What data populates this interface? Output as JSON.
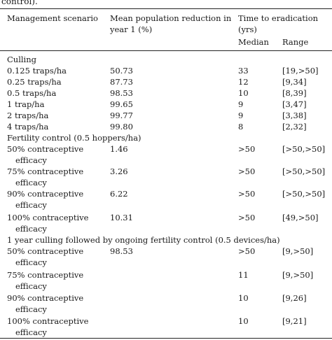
{
  "caption_tail": "control).",
  "headers": {
    "scenario": "Management scenario",
    "reduction_line1": "Mean population reduction in",
    "reduction_line2": "year 1 (%)",
    "eradication_line1": "Time to eradication",
    "eradication_line2": "(yrs)",
    "median": "Median",
    "range": "Range"
  },
  "sections": [
    {
      "title": "Culling",
      "rows": [
        {
          "scenario": "0.125 traps/ha",
          "reduction": "50.73",
          "median": "33",
          "range": "[19,>50]"
        },
        {
          "scenario": "0.25 traps/ha",
          "reduction": "87.73",
          "median": "12",
          "range": "[9,34]"
        },
        {
          "scenario": "0.5 traps/ha",
          "reduction": "98.53",
          "median": "10",
          "range": "[8,39]"
        },
        {
          "scenario": "1 trap/ha",
          "reduction": "99.65",
          "median": "9",
          "range": "[3,47]"
        },
        {
          "scenario": "2 traps/ha",
          "reduction": "99.77",
          "median": "9",
          "range": "[3,38]"
        },
        {
          "scenario": "4 traps/ha",
          "reduction": "99.80",
          "median": "8",
          "range": "[2,32]"
        }
      ]
    },
    {
      "title": "Fertility control (0.5 hoppers/ha)",
      "rows": [
        {
          "scenario": "50% contraceptive",
          "scenario_cont": "efficacy",
          "reduction": "1.46",
          "median": ">50",
          "range": "[>50,>50]"
        },
        {
          "scenario": "75% contraceptive",
          "scenario_cont": "efficacy",
          "reduction": "3.26",
          "median": ">50",
          "range": "[>50,>50]"
        },
        {
          "scenario": "90% contraceptive",
          "scenario_cont": "efficacy",
          "reduction": "6.22",
          "median": ">50",
          "range": "[>50,>50]"
        },
        {
          "scenario": "100% contraceptive",
          "scenario_cont": "efficacy",
          "reduction": "10.31",
          "median": ">50",
          "range": "[49,>50]"
        }
      ]
    },
    {
      "title": "1 year culling followed by ongoing fertility control (0.5 devices/ha)",
      "rows": [
        {
          "scenario": "50% contraceptive",
          "scenario_cont": "efficacy",
          "reduction": "98.53",
          "median": ">50",
          "range": "[9,>50]"
        },
        {
          "scenario": "75% contraceptive",
          "scenario_cont": "efficacy",
          "reduction": "",
          "median": "11",
          "range": "[9,>50]"
        },
        {
          "scenario": "90% contraceptive",
          "scenario_cont": "efficacy",
          "reduction": "",
          "median": "10",
          "range": "[9,26]"
        },
        {
          "scenario": "100% contraceptive",
          "scenario_cont": "efficacy",
          "reduction": "",
          "median": "10",
          "range": "[9,21]"
        }
      ]
    }
  ]
}
